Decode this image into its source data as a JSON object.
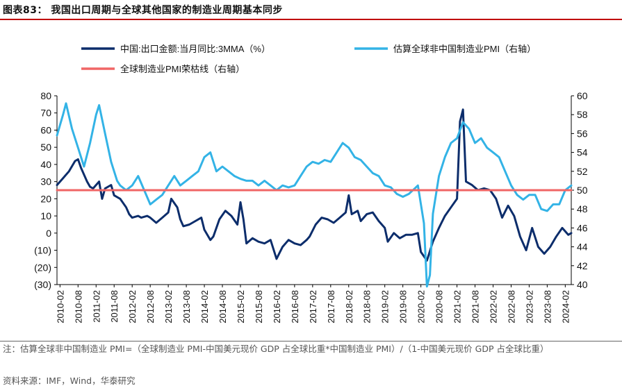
{
  "header": {
    "title": "图表83： 我国出口周期与全球其他国家的制造业周期基本同步"
  },
  "footer": {
    "note": "注：估算全球非中国制造业 PMI=（全球制造业 PMI-中国美元现价 GDP 占全球比重*中国制造业 PMI）/（1-中国美元现价 GDP 占全球比重）",
    "source": "资料来源：IMF，Wind，华泰研究"
  },
  "colors": {
    "export": "#0c2d6b",
    "pmi": "#33b3e6",
    "ref": "#f06666",
    "title_rule": "#c00000"
  },
  "chart_data": {
    "type": "line",
    "legend": [
      {
        "key": "export",
        "label": "中国:出口金额:当月同比:3MMA（%）"
      },
      {
        "key": "pmi",
        "label": "估算全球非中国制造业PMI（右轴）"
      },
      {
        "key": "ref",
        "label": "全球制造业PMI荣枯线（右轴）"
      }
    ],
    "left_axis": {
      "min": -30,
      "max": 80,
      "ticks": [
        "80",
        "70",
        "60",
        "50",
        "40",
        "30",
        "20",
        "10",
        "0",
        "(10)",
        "(20)",
        "(30)"
      ]
    },
    "right_axis": {
      "min": 40,
      "max": 60,
      "ticks": [
        "60",
        "58",
        "56",
        "54",
        "52",
        "50",
        "48",
        "46",
        "44",
        "42",
        "40"
      ]
    },
    "x_ticks": [
      "2010-02",
      "2010-08",
      "2011-02",
      "2011-08",
      "2012-02",
      "2012-08",
      "2013-02",
      "2013-08",
      "2014-02",
      "2014-08",
      "2015-02",
      "2015-08",
      "2016-02",
      "2016-08",
      "2017-02",
      "2017-08",
      "2018-02",
      "2018-08",
      "2019-02",
      "2019-08",
      "2020-02",
      "2020-08",
      "2021-02",
      "2021-08",
      "2022-02",
      "2022-08",
      "2023-02",
      "2023-08",
      "2024-02"
    ],
    "x_range": [
      "2010-01",
      "2024-04"
    ],
    "reference_line": {
      "value": 50,
      "axis": "right"
    },
    "series": [
      {
        "key": "export",
        "name": "中国:出口金额:当月同比:3MMA（%）",
        "axis": "left",
        "points": [
          [
            "2010-01",
            28
          ],
          [
            "2010-03",
            32
          ],
          [
            "2010-05",
            36
          ],
          [
            "2010-07",
            42
          ],
          [
            "2010-08",
            43
          ],
          [
            "2010-09",
            38
          ],
          [
            "2010-11",
            30
          ],
          [
            "2010-12",
            27
          ],
          [
            "2011-01",
            26
          ],
          [
            "2011-03",
            30
          ],
          [
            "2011-04",
            20
          ],
          [
            "2011-05",
            26
          ],
          [
            "2011-07",
            28
          ],
          [
            "2011-08",
            22
          ],
          [
            "2011-10",
            20
          ],
          [
            "2011-12",
            15
          ],
          [
            "2012-01",
            11
          ],
          [
            "2012-02",
            9
          ],
          [
            "2012-04",
            10
          ],
          [
            "2012-05",
            9
          ],
          [
            "2012-07",
            10
          ],
          [
            "2012-08",
            9
          ],
          [
            "2012-10",
            6
          ],
          [
            "2012-12",
            9
          ],
          [
            "2013-02",
            12
          ],
          [
            "2013-03",
            20
          ],
          [
            "2013-05",
            15
          ],
          [
            "2013-06",
            8
          ],
          [
            "2013-07",
            4
          ],
          [
            "2013-09",
            5
          ],
          [
            "2013-11",
            7
          ],
          [
            "2014-01",
            9
          ],
          [
            "2014-02",
            2
          ],
          [
            "2014-04",
            -4
          ],
          [
            "2014-05",
            -2
          ],
          [
            "2014-07",
            8
          ],
          [
            "2014-09",
            13
          ],
          [
            "2014-11",
            10
          ],
          [
            "2015-01",
            5
          ],
          [
            "2015-02",
            18
          ],
          [
            "2015-03",
            8
          ],
          [
            "2015-04",
            -6
          ],
          [
            "2015-06",
            -3
          ],
          [
            "2015-08",
            -5
          ],
          [
            "2015-10",
            -6
          ],
          [
            "2015-12",
            -4
          ],
          [
            "2016-02",
            -15
          ],
          [
            "2016-04",
            -8
          ],
          [
            "2016-06",
            -4
          ],
          [
            "2016-08",
            -6
          ],
          [
            "2016-10",
            -7
          ],
          [
            "2016-12",
            -4
          ],
          [
            "2017-01",
            -2
          ],
          [
            "2017-03",
            5
          ],
          [
            "2017-05",
            9
          ],
          [
            "2017-07",
            8
          ],
          [
            "2017-09",
            6
          ],
          [
            "2017-11",
            9
          ],
          [
            "2018-01",
            12
          ],
          [
            "2018-02",
            22
          ],
          [
            "2018-03",
            11
          ],
          [
            "2018-05",
            13
          ],
          [
            "2018-06",
            7
          ],
          [
            "2018-08",
            11
          ],
          [
            "2018-10",
            12
          ],
          [
            "2018-12",
            7
          ],
          [
            "2019-02",
            3
          ],
          [
            "2019-03",
            -5
          ],
          [
            "2019-05",
            0
          ],
          [
            "2019-07",
            -3
          ],
          [
            "2019-09",
            -1
          ],
          [
            "2019-11",
            -1
          ],
          [
            "2020-01",
            0
          ],
          [
            "2020-02",
            -11
          ],
          [
            "2020-04",
            -16
          ],
          [
            "2020-06",
            -5
          ],
          [
            "2020-08",
            3
          ],
          [
            "2020-10",
            10
          ],
          [
            "2020-12",
            15
          ],
          [
            "2021-02",
            20
          ],
          [
            "2021-03",
            65
          ],
          [
            "2021-04",
            72
          ],
          [
            "2021-05",
            30
          ],
          [
            "2021-07",
            28
          ],
          [
            "2021-09",
            25
          ],
          [
            "2021-11",
            26
          ],
          [
            "2022-01",
            25
          ],
          [
            "2022-03",
            20
          ],
          [
            "2022-05",
            9
          ],
          [
            "2022-07",
            16
          ],
          [
            "2022-09",
            10
          ],
          [
            "2022-11",
            -2
          ],
          [
            "2023-01",
            -10
          ],
          [
            "2023-03",
            3
          ],
          [
            "2023-05",
            -8
          ],
          [
            "2023-07",
            -12
          ],
          [
            "2023-09",
            -8
          ],
          [
            "2023-11",
            -2
          ],
          [
            "2024-01",
            3
          ],
          [
            "2024-03",
            -1
          ],
          [
            "2024-04",
            0
          ]
        ]
      },
      {
        "key": "pmi",
        "name": "估算全球非中国制造业PMI（右轴）",
        "axis": "right",
        "points": [
          [
            "2010-01",
            55.8
          ],
          [
            "2010-03",
            58
          ],
          [
            "2010-04",
            59.2
          ],
          [
            "2010-06",
            56.5
          ],
          [
            "2010-08",
            54.5
          ],
          [
            "2010-10",
            52.5
          ],
          [
            "2010-12",
            55
          ],
          [
            "2011-02",
            58
          ],
          [
            "2011-03",
            59
          ],
          [
            "2011-05",
            56
          ],
          [
            "2011-07",
            53
          ],
          [
            "2011-09",
            51
          ],
          [
            "2011-10",
            50.5
          ],
          [
            "2011-12",
            50
          ],
          [
            "2012-02",
            50.5
          ],
          [
            "2012-04",
            51.5
          ],
          [
            "2012-06",
            50
          ],
          [
            "2012-08",
            48.5
          ],
          [
            "2012-10",
            49
          ],
          [
            "2012-12",
            49.5
          ],
          [
            "2013-02",
            50.5
          ],
          [
            "2013-04",
            51.5
          ],
          [
            "2013-06",
            50.5
          ],
          [
            "2013-08",
            51
          ],
          [
            "2013-10",
            51.5
          ],
          [
            "2013-12",
            52
          ],
          [
            "2014-02",
            53.5
          ],
          [
            "2014-04",
            54
          ],
          [
            "2014-06",
            52
          ],
          [
            "2014-08",
            52.5
          ],
          [
            "2014-10",
            52
          ],
          [
            "2014-12",
            51.5
          ],
          [
            "2015-02",
            51.2
          ],
          [
            "2015-04",
            51
          ],
          [
            "2015-06",
            51
          ],
          [
            "2015-08",
            50.5
          ],
          [
            "2015-10",
            51
          ],
          [
            "2015-12",
            50.5
          ],
          [
            "2016-02",
            50
          ],
          [
            "2016-04",
            50.5
          ],
          [
            "2016-06",
            50.3
          ],
          [
            "2016-08",
            50.5
          ],
          [
            "2016-10",
            51.5
          ],
          [
            "2016-12",
            52.5
          ],
          [
            "2017-02",
            53
          ],
          [
            "2017-04",
            52.8
          ],
          [
            "2017-06",
            53.2
          ],
          [
            "2017-08",
            53
          ],
          [
            "2017-10",
            54
          ],
          [
            "2017-12",
            55
          ],
          [
            "2018-02",
            54.5
          ],
          [
            "2018-04",
            53.5
          ],
          [
            "2018-06",
            53.2
          ],
          [
            "2018-08",
            52.5
          ],
          [
            "2018-10",
            51.8
          ],
          [
            "2018-12",
            51.5
          ],
          [
            "2019-02",
            50.5
          ],
          [
            "2019-04",
            50.3
          ],
          [
            "2019-06",
            49.6
          ],
          [
            "2019-08",
            49.3
          ],
          [
            "2019-10",
            49.6
          ],
          [
            "2019-12",
            50.2
          ],
          [
            "2020-01",
            50.5
          ],
          [
            "2020-03",
            46.5
          ],
          [
            "2020-04",
            39.8
          ],
          [
            "2020-05",
            41
          ],
          [
            "2020-06",
            47.5
          ],
          [
            "2020-08",
            51.5
          ],
          [
            "2020-10",
            53.5
          ],
          [
            "2020-12",
            55
          ],
          [
            "2021-02",
            55.5
          ],
          [
            "2021-04",
            57.2
          ],
          [
            "2021-06",
            56.5
          ],
          [
            "2021-08",
            55
          ],
          [
            "2021-10",
            55.5
          ],
          [
            "2021-12",
            54.5
          ],
          [
            "2022-02",
            54
          ],
          [
            "2022-04",
            53.5
          ],
          [
            "2022-06",
            52
          ],
          [
            "2022-08",
            50.5
          ],
          [
            "2022-10",
            49.5
          ],
          [
            "2022-12",
            49
          ],
          [
            "2023-02",
            49.5
          ],
          [
            "2023-04",
            49.5
          ],
          [
            "2023-06",
            48
          ],
          [
            "2023-08",
            47.8
          ],
          [
            "2023-10",
            48.5
          ],
          [
            "2023-12",
            48.5
          ],
          [
            "2024-02",
            50
          ],
          [
            "2024-04",
            50.5
          ]
        ]
      },
      {
        "key": "ref",
        "name": "全球制造业PMI荣枯线（右轴）",
        "axis": "right",
        "points": [
          [
            "2010-01",
            50
          ],
          [
            "2024-04",
            50
          ]
        ]
      }
    ]
  }
}
